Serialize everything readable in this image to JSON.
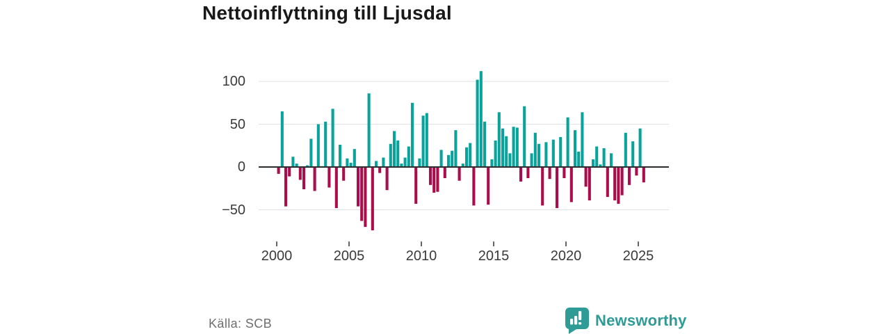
{
  "title": "Nettoinflyttning till Ljusdal",
  "source": "Källa: SCB",
  "branding": {
    "wordmark": "Newsworthy",
    "logo_icon": "speech-bubble-bar-chart-icon",
    "logo_color": "#2E9B96"
  },
  "colors": {
    "positive_bar": "#0AA39B",
    "negative_bar": "#A90D4B",
    "gridline": "#E0E0E0",
    "zero_axis": "#2D2D2D",
    "tick": "#333333",
    "tick_label": "#3A3A3A",
    "title": "#191919",
    "source_text": "#6E6E6E",
    "background": "#FFFFFF"
  },
  "y_axis": {
    "labels": [
      "100",
      "50",
      "0",
      "−50"
    ]
  },
  "x_axis": {
    "labels": [
      "2000",
      "2005",
      "2010",
      "2015",
      "2020",
      "2025"
    ]
  },
  "chart_data": {
    "type": "bar",
    "title": "Nettoinflyttning till Ljusdal",
    "frequency": "quarterly",
    "x_start": "2000 Q1",
    "x_end": "2025 Q2",
    "x_ticks": [
      2000,
      2005,
      2010,
      2015,
      2020,
      2025
    ],
    "y_ticks": [
      100,
      50,
      0,
      -50
    ],
    "ylim": [
      -80,
      115
    ],
    "grid": true,
    "legend": "none",
    "values": [
      -8,
      65,
      -46,
      -11,
      12,
      4,
      -15,
      -26,
      2,
      33,
      -28,
      50,
      1,
      53,
      -24,
      68,
      -48,
      26,
      -16,
      10,
      5,
      21,
      -46,
      -63,
      -70,
      86,
      -74,
      7,
      -7,
      11,
      -27,
      27,
      42,
      31,
      4,
      11,
      24,
      75,
      -43,
      10,
      60,
      63,
      -21,
      -30,
      -29,
      20,
      -13,
      14,
      19,
      43,
      -16,
      4,
      23,
      28,
      -45,
      102,
      112,
      53,
      -44,
      9,
      31,
      64,
      45,
      36,
      16,
      47,
      46,
      -17,
      71,
      -13,
      16,
      40,
      27,
      -45,
      29,
      -14,
      32,
      -48,
      35,
      -13,
      58,
      -41,
      43,
      18,
      64,
      -23,
      -39,
      9,
      24,
      3,
      22,
      -35,
      16,
      -39,
      -43,
      -33,
      40,
      -21,
      30,
      -10,
      45,
      -18
    ]
  }
}
